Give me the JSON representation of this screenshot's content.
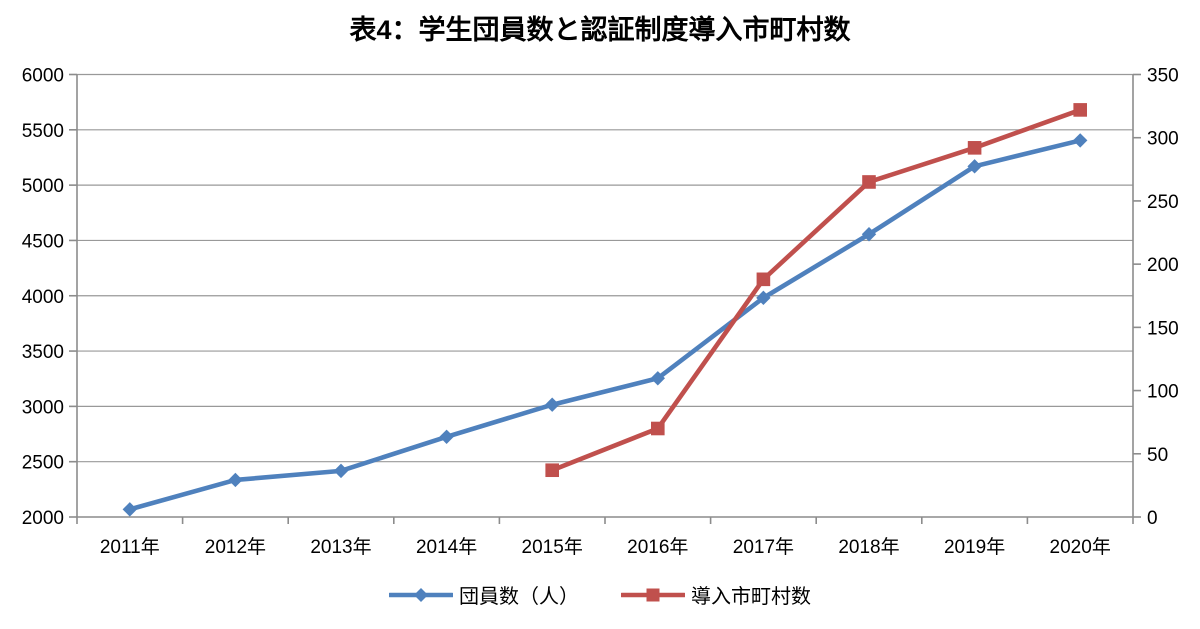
{
  "chart_data": {
    "type": "line",
    "title": "表4：学生団員数と認証制度導入市町村数",
    "categories": [
      "2011年",
      "2012年",
      "2013年",
      "2014年",
      "2015年",
      "2016年",
      "2017年",
      "2018年",
      "2019年",
      "2020年"
    ],
    "series": [
      {
        "name": "団員数（人）",
        "axis": "left",
        "color": "#4F81BD",
        "marker": "diamond",
        "values": [
          2069,
          2335,
          2417,
          2725,
          3015,
          3254,
          3981,
          4556,
          5170,
          5404
        ]
      },
      {
        "name": "導入市町村数",
        "axis": "right",
        "color": "#C0504D",
        "marker": "square",
        "values": [
          null,
          null,
          null,
          null,
          37,
          70,
          188,
          265,
          292,
          322
        ]
      }
    ],
    "axes": {
      "left": {
        "min": 2000,
        "max": 6000,
        "step": 500,
        "tick_labels": [
          "2000",
          "2500",
          "3000",
          "3500",
          "4000",
          "4500",
          "5000",
          "5500",
          "6000"
        ]
      },
      "right": {
        "min": 0,
        "max": 350,
        "step": 50,
        "tick_labels": [
          "0",
          "50",
          "100",
          "150",
          "200",
          "250",
          "300",
          "350"
        ]
      }
    },
    "grid": true,
    "legend_position": "bottom",
    "styles": {
      "grid_color": "#999999",
      "axis_color": "#8C8C8C",
      "text_color": "#000000",
      "background": "#FFFFFF"
    }
  }
}
